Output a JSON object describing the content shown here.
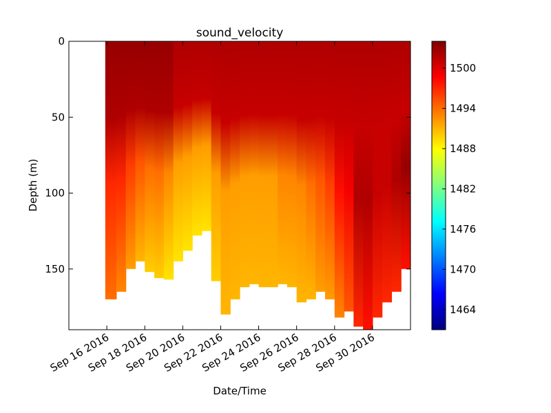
{
  "chart_data": {
    "type": "heatmap",
    "title": "sound_velocity",
    "xlabel": "Date/Time",
    "ylabel": "Depth (m)",
    "x_range": [
      "2016-09-14",
      "2016-10-02"
    ],
    "ylim": [
      190,
      0
    ],
    "y_inverted": true,
    "grid": false,
    "x_ticks": [
      {
        "date": "2016-09-16",
        "label": "Sep 16 2016"
      },
      {
        "date": "2016-09-18",
        "label": "Sep 18 2016"
      },
      {
        "date": "2016-09-20",
        "label": "Sep 20 2016"
      },
      {
        "date": "2016-09-22",
        "label": "Sep 22 2016"
      },
      {
        "date": "2016-09-24",
        "label": "Sep 24 2016"
      },
      {
        "date": "2016-09-26",
        "label": "Sep 26 2016"
      },
      {
        "date": "2016-09-28",
        "label": "Sep 28 2016"
      },
      {
        "date": "2016-09-30",
        "label": "Sep 30 2016"
      }
    ],
    "y_ticks": [
      0,
      50,
      100,
      150
    ],
    "colorbar": {
      "colormap": "jet",
      "min": 1461,
      "max": 1504,
      "ticks": [
        1464,
        1470,
        1476,
        1482,
        1488,
        1494,
        1500
      ]
    },
    "profiles": [
      {
        "start": "2016-09-15T22:00",
        "max_depth": 170,
        "velocity_top": 1503,
        "velocity_mid": 1497,
        "velocity_bottom": 1494
      },
      {
        "start": "2016-09-16T12:00",
        "max_depth": 165,
        "velocity_top": 1503,
        "velocity_mid": 1497,
        "velocity_bottom": 1493
      },
      {
        "start": "2016-09-17T00:00",
        "max_depth": 150,
        "velocity_top": 1503,
        "velocity_mid": 1496,
        "velocity_bottom": 1492
      },
      {
        "start": "2016-09-17T12:00",
        "max_depth": 145,
        "velocity_top": 1503,
        "velocity_mid": 1495,
        "velocity_bottom": 1491
      },
      {
        "start": "2016-09-18T00:00",
        "max_depth": 152,
        "velocity_top": 1503,
        "velocity_mid": 1494,
        "velocity_bottom": 1490
      },
      {
        "start": "2016-09-18T12:00",
        "max_depth": 156,
        "velocity_top": 1503,
        "velocity_mid": 1494,
        "velocity_bottom": 1490
      },
      {
        "start": "2016-09-19T00:00",
        "max_depth": 157,
        "velocity_top": 1503,
        "velocity_mid": 1493,
        "velocity_bottom": 1489
      },
      {
        "start": "2016-09-19T12:00",
        "max_depth": 145,
        "velocity_top": 1502,
        "velocity_mid": 1492,
        "velocity_bottom": 1489
      },
      {
        "start": "2016-09-20T00:00",
        "max_depth": 138,
        "velocity_top": 1502,
        "velocity_mid": 1492,
        "velocity_bottom": 1489
      },
      {
        "start": "2016-09-20T12:00",
        "max_depth": 128,
        "velocity_top": 1502,
        "velocity_mid": 1492,
        "velocity_bottom": 1489
      },
      {
        "start": "2016-09-21T00:00",
        "max_depth": 125,
        "velocity_top": 1502,
        "velocity_mid": 1492,
        "velocity_bottom": 1489
      },
      {
        "start": "2016-09-21T12:00",
        "max_depth": 158,
        "velocity_top": 1502,
        "velocity_mid": 1492,
        "velocity_bottom": 1490
      },
      {
        "start": "2016-09-22T00:00",
        "max_depth": 180,
        "velocity_top": 1502,
        "velocity_mid": 1492,
        "velocity_bottom": 1491
      },
      {
        "start": "2016-09-22T12:00",
        "max_depth": 170,
        "velocity_top": 1502,
        "velocity_mid": 1492,
        "velocity_bottom": 1491
      },
      {
        "start": "2016-09-23T00:00",
        "max_depth": 162,
        "velocity_top": 1502,
        "velocity_mid": 1492,
        "velocity_bottom": 1491
      },
      {
        "start": "2016-09-23T12:00",
        "max_depth": 160,
        "velocity_top": 1502,
        "velocity_mid": 1492,
        "velocity_bottom": 1491
      },
      {
        "start": "2016-09-24T00:00",
        "max_depth": 162,
        "velocity_top": 1502,
        "velocity_mid": 1492,
        "velocity_bottom": 1491
      },
      {
        "start": "2016-09-24T12:00",
        "max_depth": 162,
        "velocity_top": 1502,
        "velocity_mid": 1492,
        "velocity_bottom": 1491
      },
      {
        "start": "2016-09-25T00:00",
        "max_depth": 160,
        "velocity_top": 1502,
        "velocity_mid": 1493,
        "velocity_bottom": 1491
      },
      {
        "start": "2016-09-25T12:00",
        "max_depth": 162,
        "velocity_top": 1502,
        "velocity_mid": 1493,
        "velocity_bottom": 1491
      },
      {
        "start": "2016-09-26T00:00",
        "max_depth": 172,
        "velocity_top": 1502,
        "velocity_mid": 1493,
        "velocity_bottom": 1491
      },
      {
        "start": "2016-09-26T12:00",
        "max_depth": 170,
        "velocity_top": 1502,
        "velocity_mid": 1494,
        "velocity_bottom": 1491
      },
      {
        "start": "2016-09-27T00:00",
        "max_depth": 165,
        "velocity_top": 1502,
        "velocity_mid": 1495,
        "velocity_bottom": 1492
      },
      {
        "start": "2016-09-27T12:00",
        "max_depth": 170,
        "velocity_top": 1502,
        "velocity_mid": 1496,
        "velocity_bottom": 1492
      },
      {
        "start": "2016-09-28T00:00",
        "max_depth": 182,
        "velocity_top": 1502,
        "velocity_mid": 1498,
        "velocity_bottom": 1493
      },
      {
        "start": "2016-09-28T12:00",
        "max_depth": 178,
        "velocity_top": 1502,
        "velocity_mid": 1499,
        "velocity_bottom": 1495
      },
      {
        "start": "2016-09-29T00:00",
        "max_depth": 188,
        "velocity_top": 1502,
        "velocity_mid": 1502,
        "velocity_bottom": 1497
      },
      {
        "start": "2016-09-29T12:00",
        "max_depth": 190,
        "velocity_top": 1502,
        "velocity_mid": 1502,
        "velocity_bottom": 1498
      },
      {
        "start": "2016-09-30T00:00",
        "max_depth": 182,
        "velocity_top": 1502,
        "velocity_mid": 1501,
        "velocity_bottom": 1497
      },
      {
        "start": "2016-09-30T12:00",
        "max_depth": 172,
        "velocity_top": 1502,
        "velocity_mid": 1501,
        "velocity_bottom": 1497
      },
      {
        "start": "2016-10-01T00:00",
        "max_depth": 165,
        "velocity_top": 1502,
        "velocity_mid": 1502,
        "velocity_bottom": 1497
      },
      {
        "start": "2016-10-01T12:00",
        "max_depth": 150,
        "velocity_top": 1502,
        "velocity_mid": 1503,
        "velocity_bottom": 1498
      }
    ]
  }
}
